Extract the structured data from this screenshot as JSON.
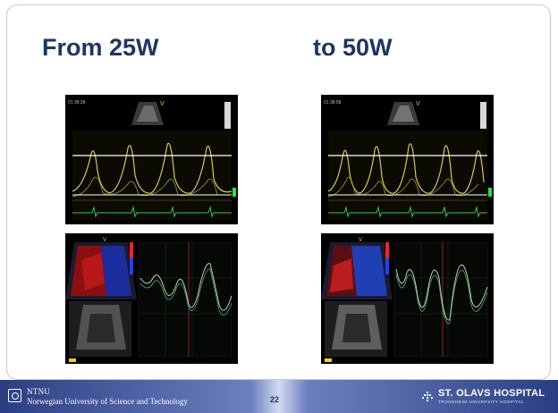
{
  "slide": {
    "title_left": "From 25W",
    "title_right": "to 50W"
  },
  "footer": {
    "ntnu_short": "NTNU",
    "ntnu_full": "Norwegian University of Science and Technology",
    "page_number": "22",
    "hospital_name": "ST. OLAVS HOSPITAL",
    "hospital_sub": "TRONDHEIM UNIVERSITY HOSPITAL"
  },
  "colors": {
    "title": "#1f3566",
    "footer_dark": "#2a3e83",
    "doppler_trace": "#d8c84a",
    "ecg_trace": "#33c26a",
    "strain_curve": "#c9d38a"
  },
  "images": [
    {
      "name": "doppler-25w",
      "description_icon": "doppler-spectrum-image"
    },
    {
      "name": "doppler-50w",
      "description_icon": "doppler-spectrum-image"
    },
    {
      "name": "strain-25w",
      "description_icon": "echocardiography-strain-image"
    },
    {
      "name": "strain-50w",
      "description_icon": "echocardiography-strain-image"
    }
  ]
}
